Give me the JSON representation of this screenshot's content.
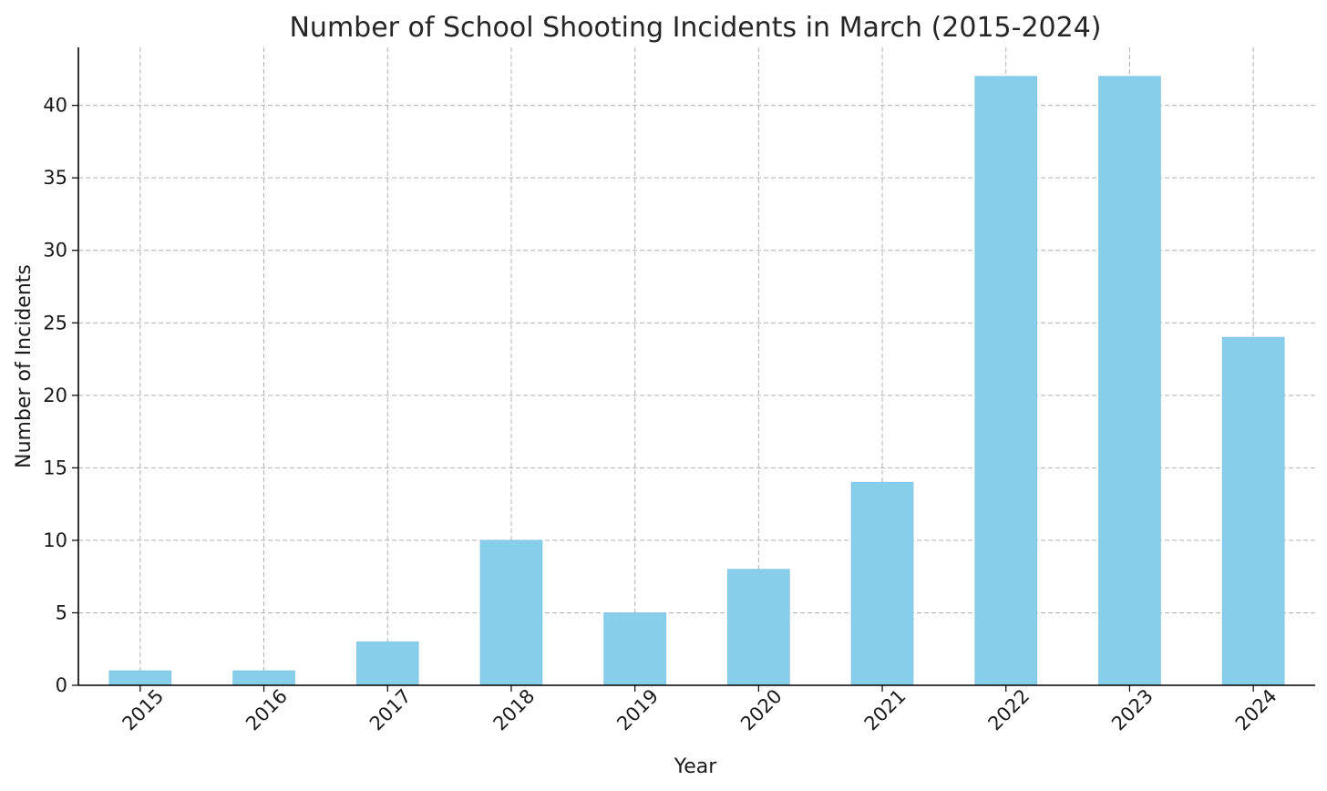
{
  "chart_data": {
    "type": "bar",
    "title": "Number of School Shooting Incidents in March (2015-2024)",
    "xlabel": "Year",
    "ylabel": "Number of Incidents",
    "categories": [
      "2015",
      "2016",
      "2017",
      "2018",
      "2019",
      "2020",
      "2021",
      "2022",
      "2023",
      "2024"
    ],
    "values": [
      1,
      1,
      3,
      10,
      5,
      8,
      14,
      42,
      42,
      24
    ],
    "ylim": [
      0,
      44
    ],
    "yticks": [
      0,
      5,
      10,
      15,
      20,
      25,
      30,
      35,
      40
    ],
    "grid": true,
    "bar_color": "#87ceeb",
    "bar_edge_color": "#7fc4e0"
  }
}
